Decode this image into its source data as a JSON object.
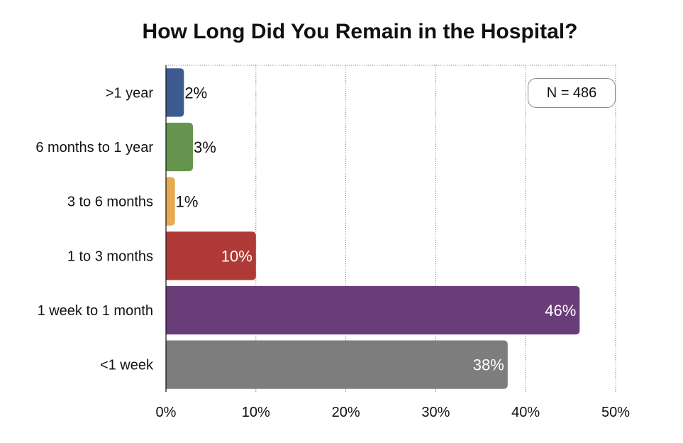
{
  "chart_data": {
    "type": "bar",
    "orientation": "horizontal",
    "title": "How Long Did You Remain in the Hospital?",
    "categories": [
      ">1 year",
      "6 months to 1 year",
      "3 to 6 months",
      "1 to 3 months",
      "1 week to 1 month",
      "<1 week"
    ],
    "values": [
      2,
      3,
      1,
      10,
      46,
      38
    ],
    "data_labels": [
      "2%",
      "3%",
      "1%",
      "10%",
      "46%",
      "38%"
    ],
    "colors": [
      "#3d5b91",
      "#66954f",
      "#e6aa52",
      "#b03a37",
      "#693e78",
      "#7c7d7c"
    ],
    "xlim": [
      0,
      50
    ],
    "xticks": [
      "0%",
      "10%",
      "20%",
      "30%",
      "40%",
      "50%"
    ],
    "xtick_values": [
      0,
      10,
      20,
      30,
      40,
      50
    ],
    "grid": "vertical dotted",
    "annotation": "N = 486"
  }
}
